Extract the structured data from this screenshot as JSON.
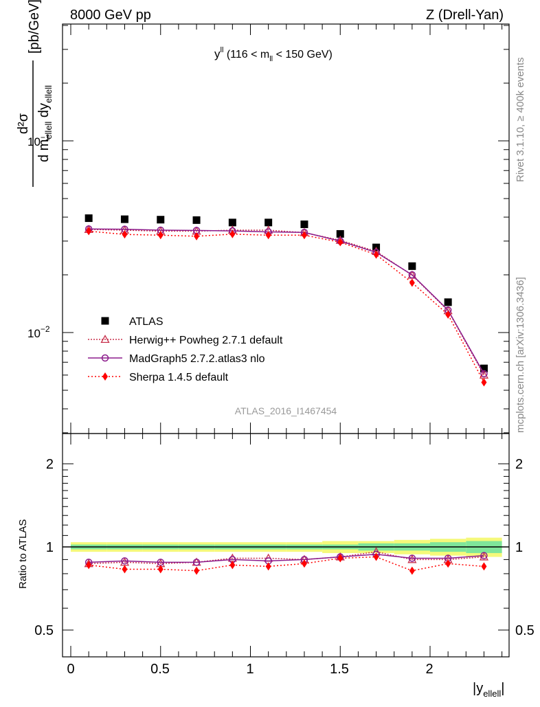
{
  "header": {
    "left_title": "8000 GeV pp",
    "right_title": "Z (Drell-Yan)"
  },
  "side_labels": {
    "rivet": "Rivet 3.1.10, ≥ 400k events",
    "mcplots": "mcplots.cern.ch [arXiv:1306.3436]"
  },
  "main_plot": {
    "title_main": "y",
    "title_sup": "ll",
    "title_rest_1": " (116 < m",
    "title_sub": "ll",
    "title_rest_2": " < 150 GeV)",
    "ylabel_num": "d²σ",
    "ylabel_den_1": "d m",
    "ylabel_den_sub1": "ellell",
    "ylabel_den_2": " dy",
    "ylabel_den_sub2": "ellell",
    "ylabel_unit": "[pb/GeV]",
    "ytick_1": "10",
    "ytick_1_exp": "−1",
    "ytick_2": "10",
    "ytick_2_exp": "−2",
    "watermark": "ATLAS_2016_I1467454"
  },
  "ratio_plot": {
    "ylabel": "Ratio to ATLAS",
    "ticks": [
      "2",
      "1",
      "0.5"
    ]
  },
  "xaxis": {
    "ticks": [
      "0",
      "0.5",
      "1",
      "1.5",
      "2"
    ],
    "label": "|y",
    "label_sub": "ellell",
    "label_end": "|"
  },
  "legend": [
    {
      "name": "ATLAS",
      "color": "#000000",
      "marker": "square"
    },
    {
      "name": "Herwig++ Powheg 2.7.1 default",
      "color": "#c8304c",
      "marker": "triangle"
    },
    {
      "name": "MadGraph5 2.7.2.atlas3 nlo",
      "color": "#8b1a8b",
      "marker": "circle"
    },
    {
      "name": "Sherpa 1.4.5 default",
      "color": "#ff0000",
      "marker": "diamond"
    }
  ],
  "chart_data": {
    "type": "scatter",
    "x": [
      0.1,
      0.3,
      0.5,
      0.7,
      0.9,
      1.1,
      1.3,
      1.5,
      1.7,
      1.9,
      2.1,
      2.3
    ],
    "xlim": [
      -0.1,
      2.45
    ],
    "main_ylim": [
      0.0033,
      0.45
    ],
    "ratio_ylim": [
      0.4,
      2.4
    ],
    "series": [
      {
        "name": "ATLAS",
        "values": [
          0.0395,
          0.039,
          0.0388,
          0.0386,
          0.0375,
          0.0375,
          0.0367,
          0.0327,
          0.0278,
          0.0222,
          0.0144,
          0.0065
        ]
      },
      {
        "name": "Herwig++ Powheg 2.7.1 default",
        "values": [
          0.0345,
          0.0342,
          0.0338,
          0.0338,
          0.0342,
          0.0342,
          0.0332,
          0.0303,
          0.0265,
          0.0199,
          0.013,
          0.006
        ]
      },
      {
        "name": "MadGraph5 2.7.2.atlas3 nlo",
        "values": [
          0.0347,
          0.0346,
          0.0342,
          0.0341,
          0.0339,
          0.0335,
          0.0333,
          0.03,
          0.0262,
          0.02,
          0.0131,
          0.0061
        ]
      },
      {
        "name": "Sherpa 1.4.5 default",
        "values": [
          0.0338,
          0.0325,
          0.0322,
          0.0318,
          0.0326,
          0.0322,
          0.0322,
          0.0296,
          0.0255,
          0.0182,
          0.0124,
          0.0055
        ]
      }
    ],
    "ratios": [
      {
        "name": "Herwig++ Powheg 2.7.1 default",
        "values": [
          0.87,
          0.88,
          0.87,
          0.88,
          0.91,
          0.91,
          0.9,
          0.92,
          0.96,
          0.9,
          0.9,
          0.92
        ]
      },
      {
        "name": "MadGraph5 2.7.2.atlas3 nlo",
        "values": [
          0.88,
          0.89,
          0.88,
          0.88,
          0.9,
          0.89,
          0.9,
          0.92,
          0.94,
          0.91,
          0.91,
          0.93
        ]
      },
      {
        "name": "Sherpa 1.4.5 default",
        "values": [
          0.86,
          0.83,
          0.83,
          0.82,
          0.86,
          0.85,
          0.87,
          0.91,
          0.92,
          0.82,
          0.87,
          0.85
        ]
      }
    ],
    "band_inner": [
      0.02,
      0.02,
      0.02,
      0.02,
      0.02,
      0.02,
      0.02,
      0.02,
      0.03,
      0.03,
      0.04,
      0.05
    ],
    "band_outer": [
      0.04,
      0.04,
      0.04,
      0.04,
      0.04,
      0.04,
      0.04,
      0.05,
      0.05,
      0.06,
      0.07,
      0.08
    ]
  }
}
